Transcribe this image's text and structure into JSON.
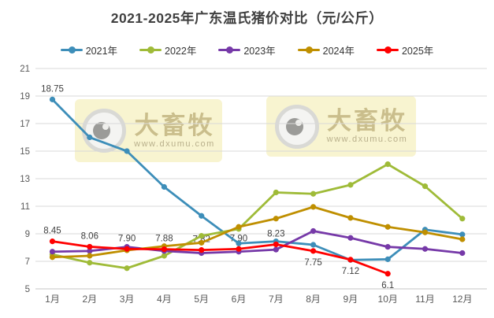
{
  "title": "2021-2025年广东温氏猪价对比（元/公斤）",
  "watermark": {
    "brand": "大畜牧",
    "url": "www.dxumu.com"
  },
  "chart_data": {
    "type": "line",
    "title": "2021-2025年广东温氏猪价对比（元/公斤）",
    "xlabel": "",
    "ylabel": "",
    "categories": [
      "1月",
      "2月",
      "3月",
      "4月",
      "5月",
      "6月",
      "7月",
      "8月",
      "9月",
      "10月",
      "11月",
      "12月"
    ],
    "series": [
      {
        "name": "2021年",
        "color": "#3D8EB9",
        "values": [
          18.75,
          16.0,
          15.0,
          12.4,
          10.3,
          8.3,
          8.45,
          8.2,
          7.1,
          7.15,
          9.3,
          8.95
        ]
      },
      {
        "name": "2022年",
        "color": "#9FBB38",
        "values": [
          7.5,
          6.9,
          6.5,
          7.4,
          8.85,
          9.35,
          12.0,
          11.9,
          12.55,
          14.05,
          12.45,
          10.1
        ]
      },
      {
        "name": "2023年",
        "color": "#7639A8",
        "values": [
          7.7,
          7.75,
          8.05,
          7.75,
          7.6,
          7.7,
          7.85,
          9.2,
          8.7,
          8.05,
          7.9,
          7.6
        ]
      },
      {
        "name": "2024年",
        "color": "#BF8F00",
        "values": [
          7.3,
          7.4,
          7.8,
          8.1,
          8.35,
          9.5,
          10.1,
          10.95,
          10.15,
          9.5,
          9.1,
          8.6
        ]
      },
      {
        "name": "2025年",
        "color": "#FF0000",
        "values": [
          8.45,
          8.06,
          7.9,
          7.88,
          7.82,
          7.9,
          8.23,
          7.75,
          7.12,
          6.1,
          null,
          null
        ]
      }
    ],
    "point_labels": [
      {
        "series": "2021年",
        "index": 0,
        "text": "18.75",
        "pos": "above"
      },
      {
        "series": "2025年",
        "index": 0,
        "text": "8.45",
        "pos": "above"
      },
      {
        "series": "2025年",
        "index": 1,
        "text": "8.06",
        "pos": "above"
      },
      {
        "series": "2025年",
        "index": 2,
        "text": "7.90",
        "pos": "above"
      },
      {
        "series": "2025年",
        "index": 3,
        "text": "7.88",
        "pos": "above"
      },
      {
        "series": "2025年",
        "index": 4,
        "text": "7.82",
        "pos": "above"
      },
      {
        "series": "2025年",
        "index": 5,
        "text": "7.90",
        "pos": "above"
      },
      {
        "series": "2025年",
        "index": 6,
        "text": "8.23",
        "pos": "above"
      },
      {
        "series": "2025年",
        "index": 7,
        "text": "7.75",
        "pos": "below"
      },
      {
        "series": "2025年",
        "index": 8,
        "text": "7.12",
        "pos": "below"
      },
      {
        "series": "2025年",
        "index": 9,
        "text": "6.1",
        "pos": "below"
      }
    ],
    "ylim": [
      5,
      21
    ],
    "ytick_step": 2,
    "grid": "horizontal-only",
    "legend_position": "top",
    "colors": {
      "grid": "#d9d9d9",
      "axis_text": "#595959",
      "label_text": "#404040",
      "title_text": "#404040"
    }
  }
}
